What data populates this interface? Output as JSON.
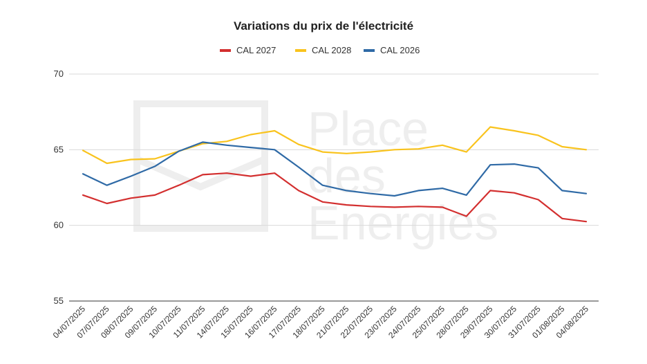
{
  "chart_data": {
    "type": "line",
    "title": "Variations du prix de l'électricité",
    "xlabel": "",
    "ylabel": "",
    "ylim": [
      55,
      70
    ],
    "yticks": [
      55,
      60,
      65,
      70
    ],
    "grid": true,
    "legend_position": "top",
    "categories": [
      "04/07/2025",
      "07/07/2025",
      "08/07/2025",
      "09/07/2025",
      "10/07/2025",
      "11/07/2025",
      "14/07/2025",
      "15/07/2025",
      "16/07/2025",
      "17/07/2025",
      "18/07/2025",
      "21/07/2025",
      "22/07/2025",
      "23/07/2025",
      "24/07/2025",
      "25/07/2025",
      "28/07/2025",
      "29/07/2025",
      "30/07/2025",
      "31/07/2025",
      "01/08/2025",
      "04/08/2025"
    ],
    "series": [
      {
        "name": "CAL 2027",
        "color": "#d32f2f",
        "values": [
          62.0,
          61.45,
          61.8,
          62.0,
          62.65,
          63.35,
          63.45,
          63.25,
          63.45,
          62.3,
          61.55,
          61.35,
          61.25,
          61.2,
          61.25,
          61.2,
          60.6,
          62.3,
          62.15,
          61.7,
          60.45,
          60.25
        ]
      },
      {
        "name": "CAL 2028",
        "color": "#f9c31d",
        "values": [
          64.95,
          64.1,
          64.35,
          64.4,
          64.9,
          65.4,
          65.55,
          66.0,
          66.25,
          65.35,
          64.85,
          64.75,
          64.85,
          65.0,
          65.05,
          65.3,
          64.85,
          66.5,
          66.25,
          65.95,
          65.2,
          65.0
        ]
      },
      {
        "name": "CAL 2026",
        "color": "#2f6aa6",
        "values": [
          63.4,
          62.65,
          63.25,
          63.9,
          64.9,
          65.5,
          65.3,
          65.15,
          65.0,
          63.85,
          62.65,
          62.3,
          62.1,
          61.95,
          62.3,
          62.45,
          62.0,
          64.0,
          64.05,
          63.8,
          62.3,
          62.1
        ]
      }
    ],
    "watermark_lines": [
      "Place",
      "des",
      "Energies"
    ]
  }
}
